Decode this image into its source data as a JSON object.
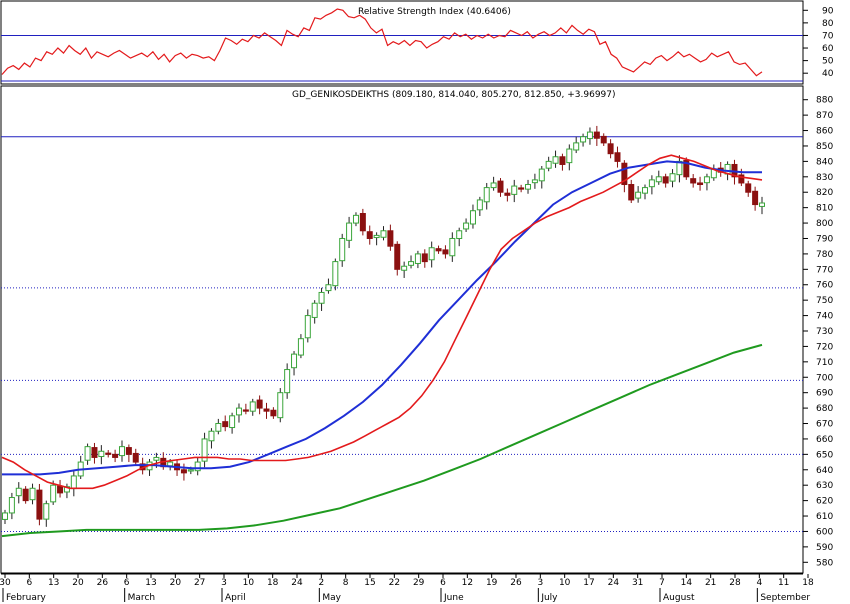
{
  "colors": {
    "up": "#3aa53a",
    "down": "#8b1010",
    "ma_short": "#e31a1c",
    "ma_mid": "#1f2fd6",
    "ma_long": "#1f9a1f",
    "rsi": "#e31a1c",
    "hline_solid": "#2020c0",
    "hline_dotted": "#2020c0",
    "axis": "#000000"
  },
  "chart_data": [
    {
      "type": "line",
      "panel": "top",
      "title": "Relative Strength Index (40.6406)",
      "yticks": [
        40,
        50,
        60,
        70,
        80,
        90
      ],
      "ylim": [
        33,
        95
      ],
      "reference_lines": [
        {
          "value": 70,
          "style": "solid"
        }
      ],
      "series": [
        {
          "values": [
            39,
            44,
            46,
            43,
            48,
            45,
            52,
            50,
            57,
            55,
            60,
            56,
            62,
            58,
            55,
            60,
            52,
            57,
            55,
            53,
            56,
            58,
            55,
            52,
            54,
            56,
            53,
            57,
            51,
            55,
            49,
            54,
            56,
            52,
            55,
            54,
            52,
            53,
            50,
            58,
            68,
            66,
            63,
            67,
            65,
            70,
            68,
            72,
            69,
            66,
            62,
            74,
            71,
            69,
            76,
            74,
            84,
            83,
            86,
            88,
            91,
            90,
            85,
            84,
            86,
            83,
            76,
            72,
            75,
            62,
            65,
            63,
            66,
            62,
            66,
            65,
            60,
            63,
            65,
            69,
            67,
            72,
            69,
            71,
            67,
            70,
            68,
            71,
            68,
            70,
            69,
            74,
            72,
            70,
            73,
            68,
            71,
            73,
            70,
            72,
            76,
            72,
            78,
            74,
            71,
            75,
            73,
            63,
            65,
            55,
            52,
            45,
            43,
            41,
            45,
            49,
            47,
            52,
            54,
            50,
            53,
            57,
            53,
            55,
            52,
            49,
            51,
            56,
            53,
            55,
            57,
            49,
            47,
            48,
            43,
            38,
            41
          ]
        }
      ]
    },
    {
      "type": "candlestick",
      "panel": "main",
      "title": "GD_GENIKOSDEIKTHS (809.180, 814.040, 805.270, 812.850, +3.96997)",
      "ylim": [
        575,
        885
      ],
      "yticks": [
        580,
        590,
        600,
        610,
        620,
        630,
        640,
        650,
        660,
        670,
        680,
        690,
        700,
        710,
        720,
        730,
        740,
        750,
        760,
        770,
        780,
        790,
        800,
        810,
        820,
        830,
        840,
        850,
        860,
        870,
        880
      ],
      "reference_lines": [
        {
          "value": 856,
          "style": "solid"
        },
        {
          "value": 758,
          "style": "dotted"
        },
        {
          "value": 698,
          "style": "dotted"
        },
        {
          "value": 650,
          "style": "dotted"
        },
        {
          "value": 600,
          "style": "dotted"
        }
      ],
      "x_ticks": [
        "30",
        "6",
        "13",
        "20",
        "26",
        "6",
        "13",
        "20",
        "27",
        "3",
        "10",
        "18",
        "24",
        "2",
        "8",
        "15",
        "22",
        "29",
        "6",
        "12",
        "19",
        "26",
        "3",
        "10",
        "17",
        "24",
        "31",
        "7",
        "14",
        "21",
        "28",
        "4",
        "11",
        "18"
      ],
      "months": [
        "February",
        "March",
        "April",
        "May",
        "June",
        "July",
        "August",
        "September"
      ],
      "close": [
        612,
        622,
        628,
        620,
        628,
        608,
        618,
        630,
        625,
        629,
        636,
        645,
        655,
        648,
        652,
        650,
        648,
        655,
        650,
        645,
        640,
        645,
        648,
        642,
        645,
        640,
        638,
        640,
        645,
        660,
        665,
        670,
        668,
        675,
        680,
        678,
        684,
        680,
        678,
        675,
        690,
        705,
        715,
        725,
        740,
        748,
        755,
        760,
        775,
        790,
        800,
        805,
        795,
        790,
        792,
        795,
        785,
        770,
        772,
        775,
        780,
        775,
        784,
        782,
        780,
        790,
        795,
        800,
        808,
        815,
        823,
        826,
        820,
        818,
        824,
        822,
        825,
        828,
        835,
        840,
        843,
        838,
        848,
        852,
        856,
        859,
        855,
        852,
        845,
        840,
        825,
        815,
        820,
        823,
        828,
        830,
        826,
        832,
        840,
        830,
        826,
        825,
        830,
        835,
        833,
        838,
        830,
        826,
        820,
        812,
        813
      ],
      "ma_short": [
        648,
        645,
        640,
        636,
        632,
        630,
        628,
        628,
        628,
        630,
        633,
        636,
        640,
        643,
        645,
        646,
        647,
        648,
        648,
        648,
        647,
        647,
        646,
        646,
        646,
        646,
        647,
        648,
        650,
        652,
        655,
        658,
        662,
        666,
        670,
        674,
        680,
        688,
        698,
        710,
        725,
        740,
        755,
        770,
        783,
        790,
        795,
        800,
        804,
        807,
        810,
        814,
        817,
        820,
        824,
        828,
        833,
        838,
        842,
        844,
        842,
        840,
        837,
        834,
        832,
        830,
        829,
        828
      ],
      "ma_mid": [
        637,
        637,
        637,
        638,
        640,
        641,
        642,
        643,
        643,
        642,
        641,
        641,
        642,
        645,
        650,
        655,
        660,
        667,
        675,
        684,
        695,
        708,
        722,
        737,
        750,
        763,
        775,
        788,
        800,
        812,
        820,
        826,
        832,
        836,
        838,
        840,
        839,
        836,
        834,
        833,
        833
      ],
      "ma_long": [
        597,
        599,
        600,
        601,
        601,
        601,
        601,
        601,
        602,
        604,
        607,
        611,
        615,
        621,
        627,
        633,
        640,
        647,
        655,
        663,
        671,
        679,
        687,
        695,
        702,
        709,
        716,
        721
      ]
    }
  ]
}
